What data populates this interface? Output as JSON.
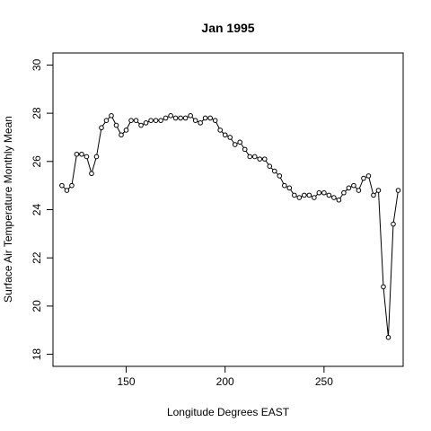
{
  "chart_data": {
    "type": "line",
    "title": "Jan 1995",
    "xlabel": "Longitude Degrees EAST",
    "ylabel": "Surface Air Temperature Monthly Mean",
    "xlim": [
      113,
      290
    ],
    "ylim": [
      17.5,
      30.5
    ],
    "x_ticks": [
      150,
      200,
      250
    ],
    "y_ticks": [
      18,
      20,
      22,
      24,
      26,
      28,
      30
    ],
    "grid": false,
    "line_color": "#000000",
    "marker": "open-circle",
    "series": [
      {
        "x": [
          117.5,
          120,
          122.5,
          125,
          127.5,
          130,
          132.5,
          135,
          137.5,
          140,
          142.5,
          145,
          147.5,
          150,
          152.5,
          155,
          157.5,
          160,
          162.5,
          165,
          167.5,
          170,
          172.5,
          175,
          177.5,
          180,
          182.5,
          185,
          187.5,
          190,
          192.5,
          195,
          197.5,
          200,
          202.5,
          205,
          207.5,
          210,
          212.5,
          215,
          217.5,
          220,
          222.5,
          225,
          227.5,
          230,
          232.5,
          235,
          237.5,
          240,
          242.5,
          245,
          247.5,
          250,
          252.5,
          255,
          257.5,
          260,
          262.5,
          265,
          267.5,
          270,
          272.5,
          275,
          277.5,
          280,
          282.5,
          285,
          287.5
        ],
        "y": [
          25.0,
          24.8,
          25.0,
          26.3,
          26.3,
          26.2,
          25.5,
          26.2,
          27.4,
          27.7,
          27.9,
          27.5,
          27.1,
          27.3,
          27.7,
          27.7,
          27.5,
          27.6,
          27.7,
          27.7,
          27.7,
          27.8,
          27.9,
          27.8,
          27.8,
          27.8,
          27.9,
          27.7,
          27.6,
          27.8,
          27.8,
          27.7,
          27.3,
          27.1,
          27.0,
          26.7,
          26.8,
          26.5,
          26.2,
          26.2,
          26.1,
          26.1,
          25.8,
          25.6,
          25.4,
          25.0,
          24.9,
          24.6,
          24.5,
          24.6,
          24.6,
          24.5,
          24.7,
          24.7,
          24.6,
          24.5,
          24.4,
          24.7,
          24.9,
          25.0,
          24.8,
          25.3,
          25.4,
          24.6,
          24.8,
          20.8,
          18.7,
          23.4,
          24.8
        ]
      }
    ]
  }
}
